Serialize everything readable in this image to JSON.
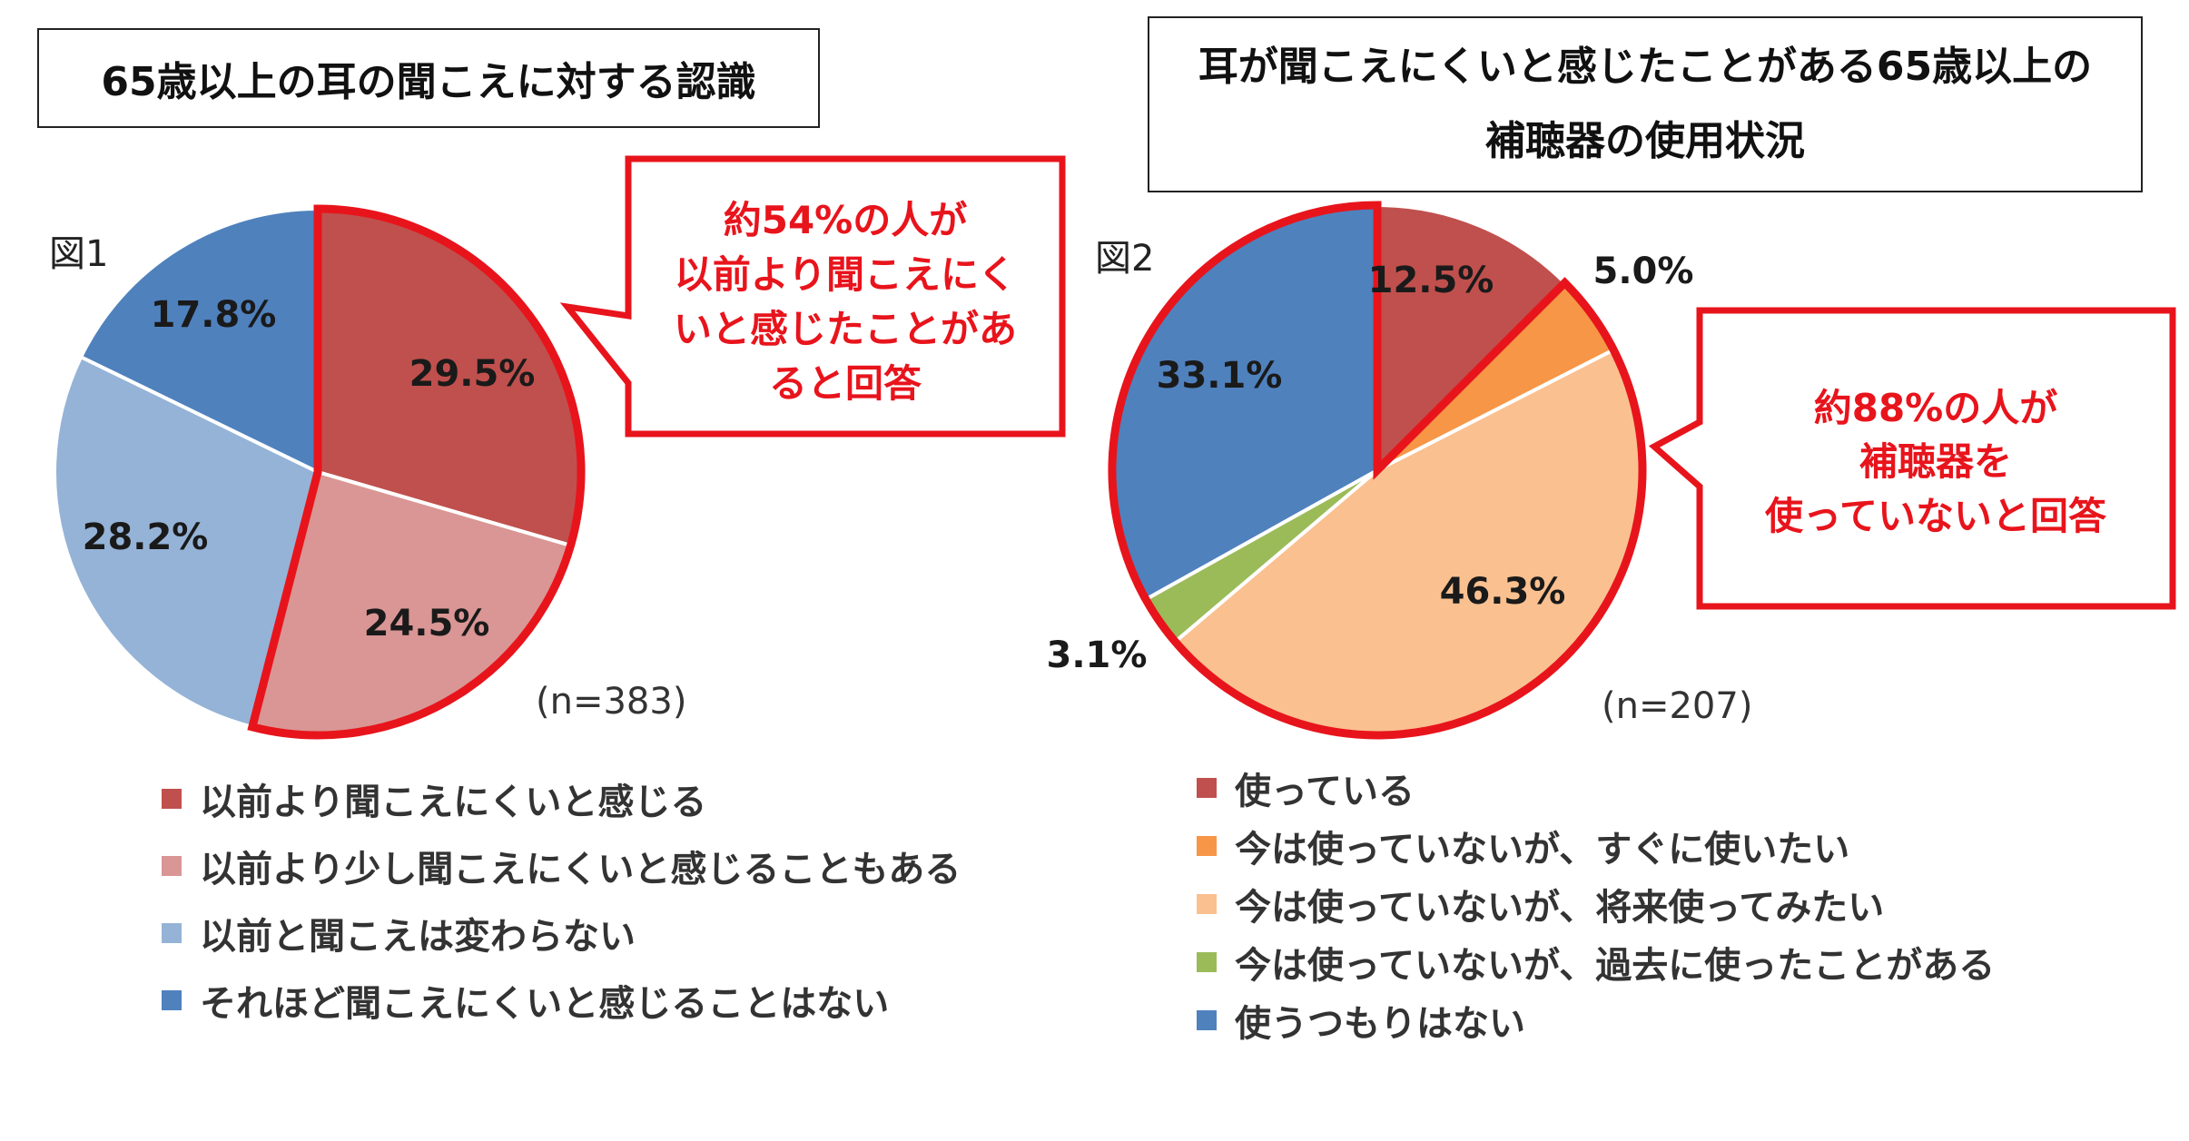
{
  "left": {
    "title": "65歳以上の耳の聞こえに対する認識",
    "figure_label": "図1",
    "sample": "(n=383)",
    "callout_lines": [
      "約54%の人が",
      "以前より聞こえにく",
      "いと感じたことがあ",
      "ると回答"
    ]
  },
  "right": {
    "title_lines": [
      "耳が聞こえにくいと感じたことがある65歳以上の",
      "補聴器の使用状況"
    ],
    "figure_label": "図2",
    "sample": "(n=207)",
    "callout_lines": [
      "約88%の人が",
      "補聴器を",
      "使っていないと回答"
    ]
  },
  "colors": {
    "highlight": "#e8141c",
    "callout_text": "#e8141c",
    "label_text": "#1a1a1a"
  },
  "chart_data": [
    {
      "type": "pie",
      "title": "65歳以上の耳の聞こえに対する認識",
      "categories": [
        "以前より聞こえにくいと感じる",
        "以前より少し聞こえにくいと感じることもある",
        "以前と聞こえは変わらない",
        "それほど聞こえにくいと感じることはない"
      ],
      "values": [
        29.5,
        24.5,
        28.2,
        17.8
      ],
      "labels": [
        "29.5%",
        "24.5%",
        "28.2%",
        "17.8%"
      ],
      "colors": [
        "#c0504d",
        "#d99694",
        "#95b3d7",
        "#4f81bd"
      ],
      "highlighted": [
        0,
        1
      ],
      "legend": "bottom"
    },
    {
      "type": "pie",
      "title": "耳が聞こえにくいと感じたことがある65歳以上の補聴器の使用状況",
      "categories": [
        "使っている",
        "今は使っていないが、すぐに使いたい",
        "今は使っていないが、将来使ってみたい",
        "今は使っていないが、過去に使ったことがある",
        "使うつもりはない"
      ],
      "values": [
        12.5,
        5.0,
        46.3,
        3.1,
        33.1
      ],
      "labels": [
        "12.5%",
        "5.0%",
        "46.3%",
        "3.1%",
        "33.1%"
      ],
      "colors": [
        "#c0504d",
        "#f79646",
        "#fac090",
        "#9bbb59",
        "#4f81bd"
      ],
      "highlighted": [
        1,
        2,
        3,
        4
      ],
      "legend": "bottom"
    }
  ]
}
